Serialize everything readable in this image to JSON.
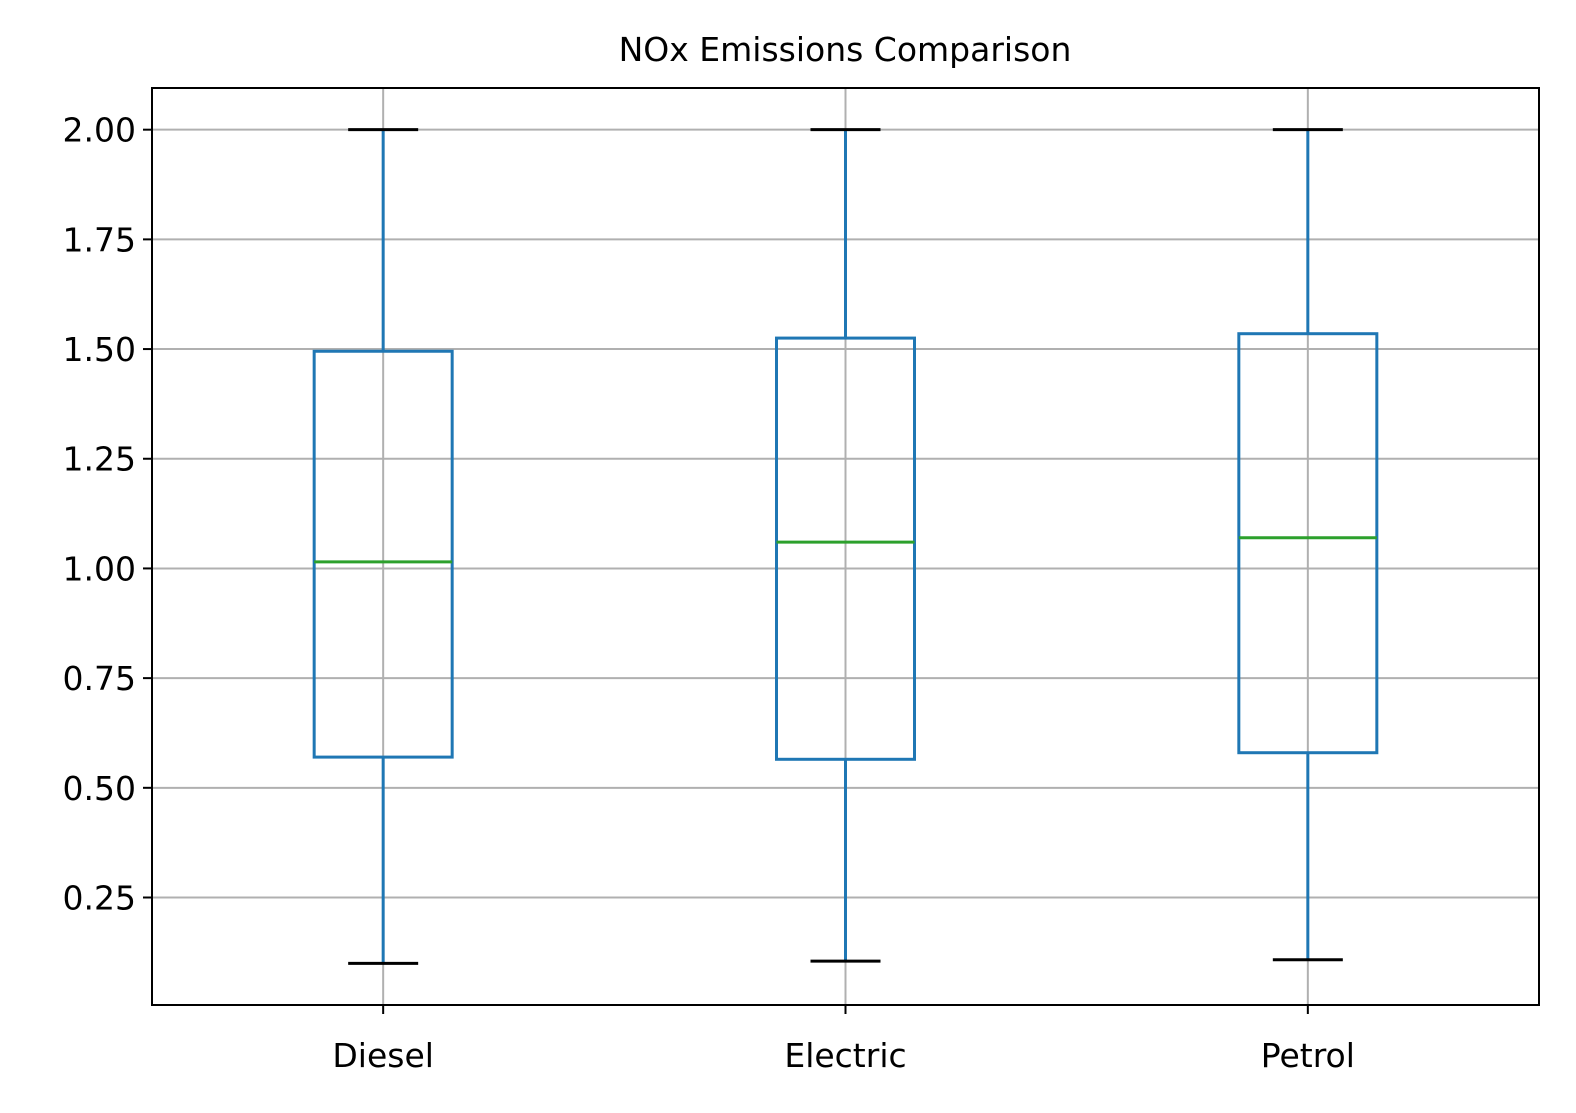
{
  "chart_data": {
    "type": "boxplot",
    "title": "NOx Emissions Comparison",
    "xlabel": "",
    "ylabel": "",
    "categories": [
      "Diesel",
      "Electric",
      "Petrol"
    ],
    "boxes": [
      {
        "category": "Diesel",
        "whisker_low": 0.1,
        "q1": 0.57,
        "median": 1.015,
        "q3": 1.495,
        "whisker_high": 2.0
      },
      {
        "category": "Electric",
        "whisker_low": 0.105,
        "q1": 0.565,
        "median": 1.06,
        "q3": 1.525,
        "whisker_high": 2.0
      },
      {
        "category": "Petrol",
        "whisker_low": 0.108,
        "q1": 0.58,
        "median": 1.07,
        "q3": 1.535,
        "whisker_high": 2.0
      }
    ],
    "yticks": [
      0.25,
      0.5,
      0.75,
      1.0,
      1.25,
      1.5,
      1.75,
      2.0
    ],
    "ytick_labels": [
      "0.25",
      "0.50",
      "0.75",
      "1.00",
      "1.25",
      "1.50",
      "1.75",
      "2.00"
    ],
    "ylim": [
      0.005,
      2.095
    ],
    "grid": true,
    "colors": {
      "box": "#1f77b4",
      "median": "#2ca02c",
      "cap": "#000000",
      "grid": "#b0b0b0"
    }
  }
}
